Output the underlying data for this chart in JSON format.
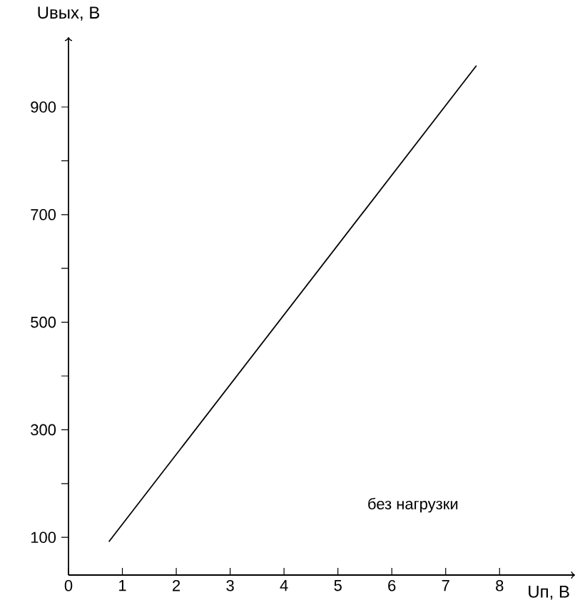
{
  "chart_data": {
    "type": "line",
    "xlabel": "Uп, В",
    "ylabel": "Uвых, В",
    "annotations": [
      "без нагрузки"
    ],
    "x": [
      0.75,
      7.57
    ],
    "series": [
      {
        "color": "#000000",
        "values": [
          92,
          977
        ]
      }
    ],
    "xlim": [
      0,
      9.4
    ],
    "ylim": [
      30,
      1030
    ],
    "xticks": [
      0,
      1,
      2,
      3,
      4,
      5,
      6,
      7,
      8
    ],
    "yticks": [
      100,
      {
        "value": 200,
        "label": null
      },
      300,
      {
        "value": 400,
        "label": null
      },
      500,
      {
        "value": 600,
        "label": null
      },
      700,
      {
        "value": 800,
        "label": null
      },
      900
    ],
    "grid": false,
    "marker": "none",
    "line_style": "solid"
  }
}
